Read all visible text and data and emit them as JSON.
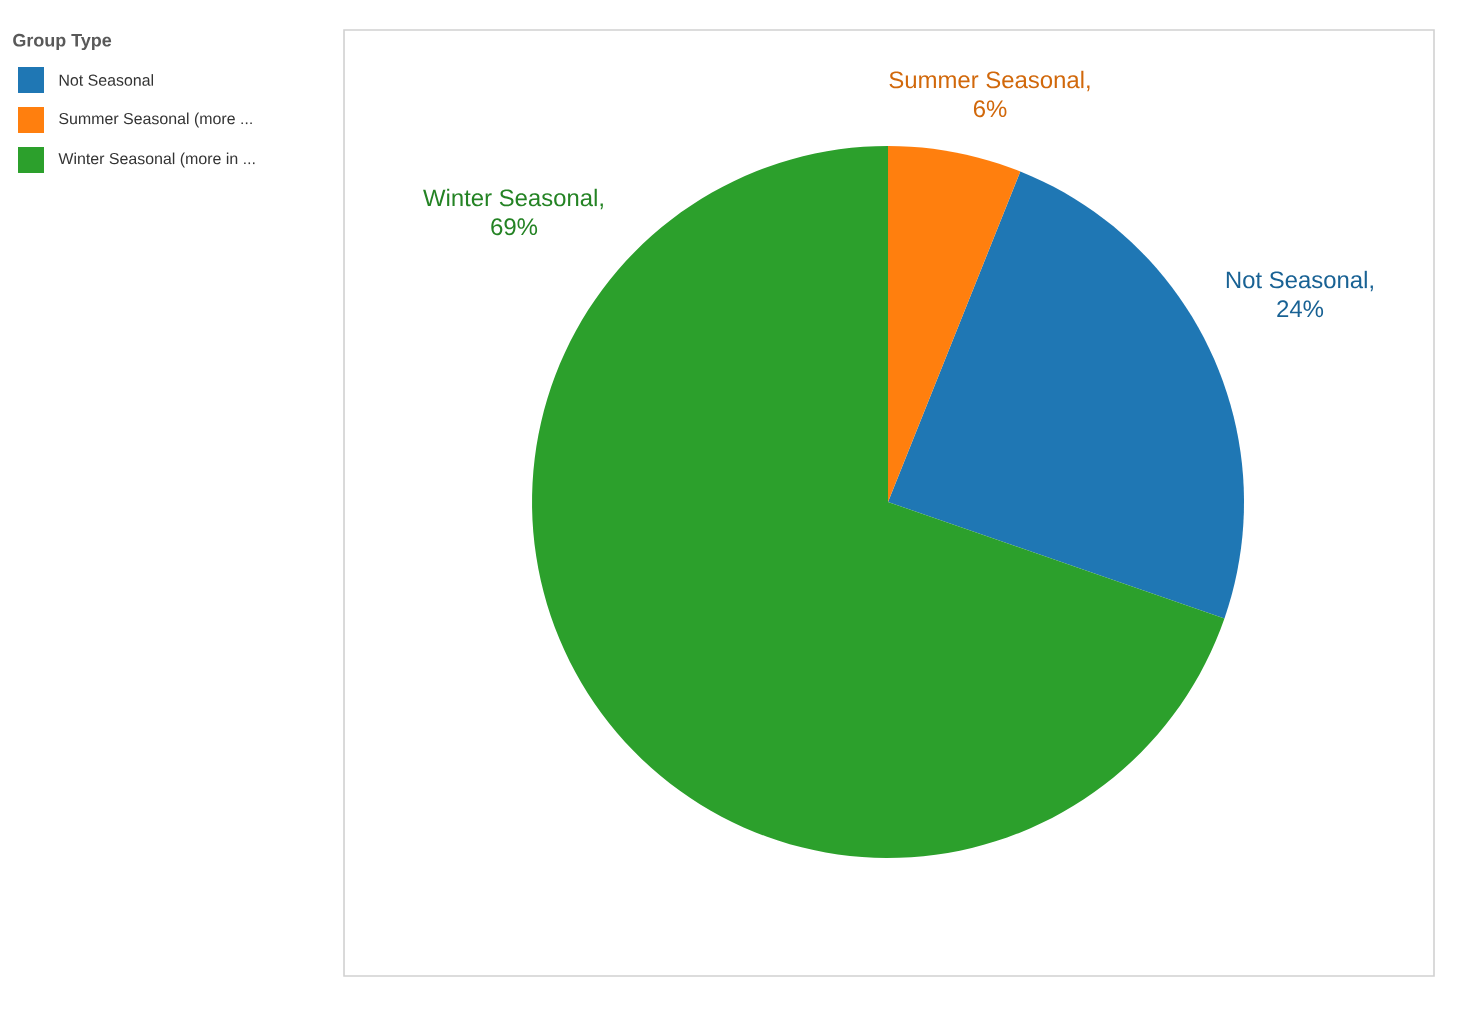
{
  "chart_data": {
    "type": "pie",
    "legend_title": "Group Type",
    "legend": "left",
    "categories": [
      "Not Seasonal",
      "Summer Seasonal (more ...",
      "Winter Seasonal (more in ..."
    ],
    "values": [
      24,
      6,
      69
    ],
    "colors": [
      "#1f77b4",
      "#ff7f0e",
      "#2ca02c"
    ],
    "value_labels": [
      "Not Seasonal, 24%",
      "Summer Seasonal, 6%",
      "Winter Seasonal, 69%"
    ]
  }
}
